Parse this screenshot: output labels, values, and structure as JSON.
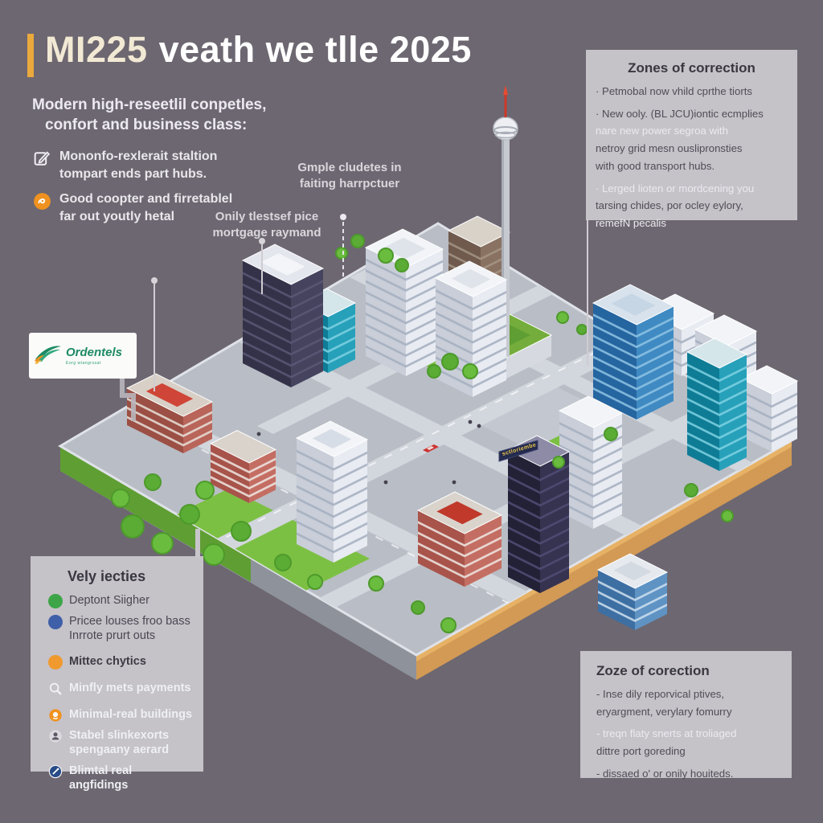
{
  "title": {
    "part1": "MI225",
    "part2": "veath we tlle 2025"
  },
  "intro": {
    "heading_line1": "Modern high-reseetlil conpetles,",
    "heading_line2": "confort and business class:",
    "bullets": [
      {
        "icon": "edit-document-icon",
        "line1": "Mononfo-rexlerait staltion",
        "line2": "tompart ends part hubs."
      },
      {
        "icon": "coin-hand-icon",
        "line1": "Good coopter and firretablel",
        "line2": "far out youtly hetal"
      }
    ]
  },
  "callouts": {
    "label1_line1": "Gmple cludetes in",
    "label1_line2": "faiting harrpctuer",
    "label2_line1": "Onily tlestsef pice",
    "label2_line2": "mortgage raymand"
  },
  "zones_top": {
    "title": "Zones of correction",
    "lines": [
      "· Petmobal now vhild cprthe tiorts",
      "· New ooly. (BL JCU)iontic ecmplies",
      "nare new power segroa with",
      "netroy grid mesn ouslipronsties",
      "with good transport hubs.",
      "· Lerged lioten or mordcening you",
      "tarsing chides, por ocley eylory,",
      "remefN pecalis"
    ]
  },
  "zones_bottom": {
    "title": "Zoze of corection",
    "lines": [
      "- Inse dily reporvical ptives,",
      "eryargment, verylary fomurry",
      "- treqn flaty snerts at troliaged",
      "dittre port goreding",
      "- dissaed o' or onily houiteds."
    ]
  },
  "legend": {
    "title": "Vely iecties",
    "items": [
      {
        "icon": "green-dot",
        "label1": "Deptont Siigher",
        "label2": ""
      },
      {
        "icon": "blue-dot",
        "label1": "Pricee louses froo bass",
        "label2": "Inrrote prurt outs"
      },
      {
        "icon": "orange-dot",
        "label1": "Mittec chytics",
        "label2": ""
      },
      {
        "icon": "magnifier-icon",
        "label1": "Minfly mets payments",
        "label2": ""
      },
      {
        "icon": "orange-circle-icon",
        "label1": "Minimal-real buildings",
        "label2": ""
      },
      {
        "icon": "person-circle-icon",
        "label1": "Stabel slinkexorts",
        "label2": "spengaany aerard"
      },
      {
        "icon": "compass-circle-icon",
        "label1": "Blimtal real angfidings",
        "label2": ""
      }
    ]
  },
  "logo": {
    "name": "Ordentels",
    "tagline": "Eorg wtangrssat"
  },
  "map": {
    "sign_text": "sctloriembe",
    "landmark": "tv-tower"
  },
  "colors": {
    "background": "#6d6771",
    "accent_yellow": "#e9a93c",
    "panel_gray": "#c8c5cb",
    "logo_green": "#1d8a66",
    "legend_green": "#3da547",
    "legend_blue": "#3f5fa8",
    "legend_orange": "#f0992e",
    "lawn_green": "#7cc043",
    "soil_tan": "#d29a55"
  }
}
